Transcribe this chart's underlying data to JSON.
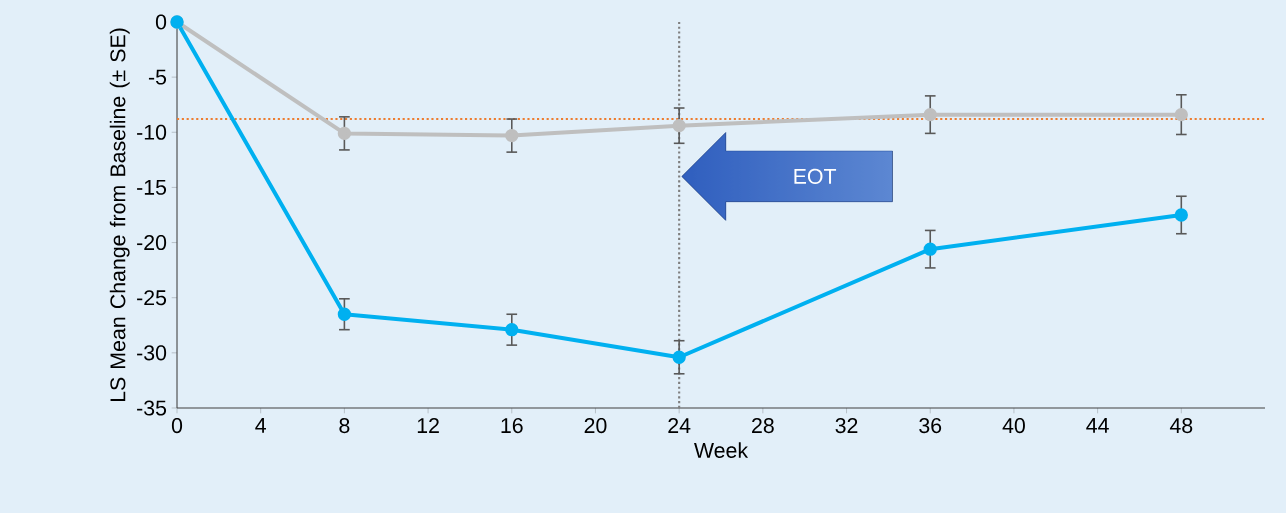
{
  "chart_data": {
    "type": "line",
    "xlabel": "Week",
    "ylabel": "LS Mean Change from Baseline (± SE)",
    "x": [
      0,
      8,
      16,
      24,
      36,
      48
    ],
    "series": [
      {
        "color": "#bfbfbf",
        "values": [
          0,
          -10.1,
          -10.3,
          -9.4,
          -8.4,
          -8.4
        ],
        "errors": [
          null,
          1.5,
          1.5,
          1.6,
          1.7,
          1.8
        ]
      },
      {
        "color": "#00b0f0",
        "values": [
          0,
          -26.5,
          -27.9,
          -30.4,
          -20.6,
          -17.5
        ],
        "errors": [
          null,
          1.4,
          1.4,
          1.5,
          1.7,
          1.7
        ]
      }
    ],
    "xlim": [
      0,
      52
    ],
    "xticks": [
      0,
      4,
      8,
      12,
      16,
      20,
      24,
      28,
      32,
      36,
      40,
      44,
      48
    ],
    "ylim": [
      -35,
      0
    ],
    "yticks": [
      -35,
      -30,
      -25,
      -20,
      -15,
      -10,
      -5,
      0
    ],
    "ref_lines": [
      {
        "axis": "y",
        "value": -8.8,
        "color": "#ed7d31",
        "line_style": "dotted"
      },
      {
        "axis": "x",
        "value": 24,
        "color": "#7f7f7f",
        "line_style": "dotted"
      }
    ],
    "annotations": [
      "EOT"
    ],
    "marker": "circle",
    "line_style": "solid",
    "grid": false
  }
}
